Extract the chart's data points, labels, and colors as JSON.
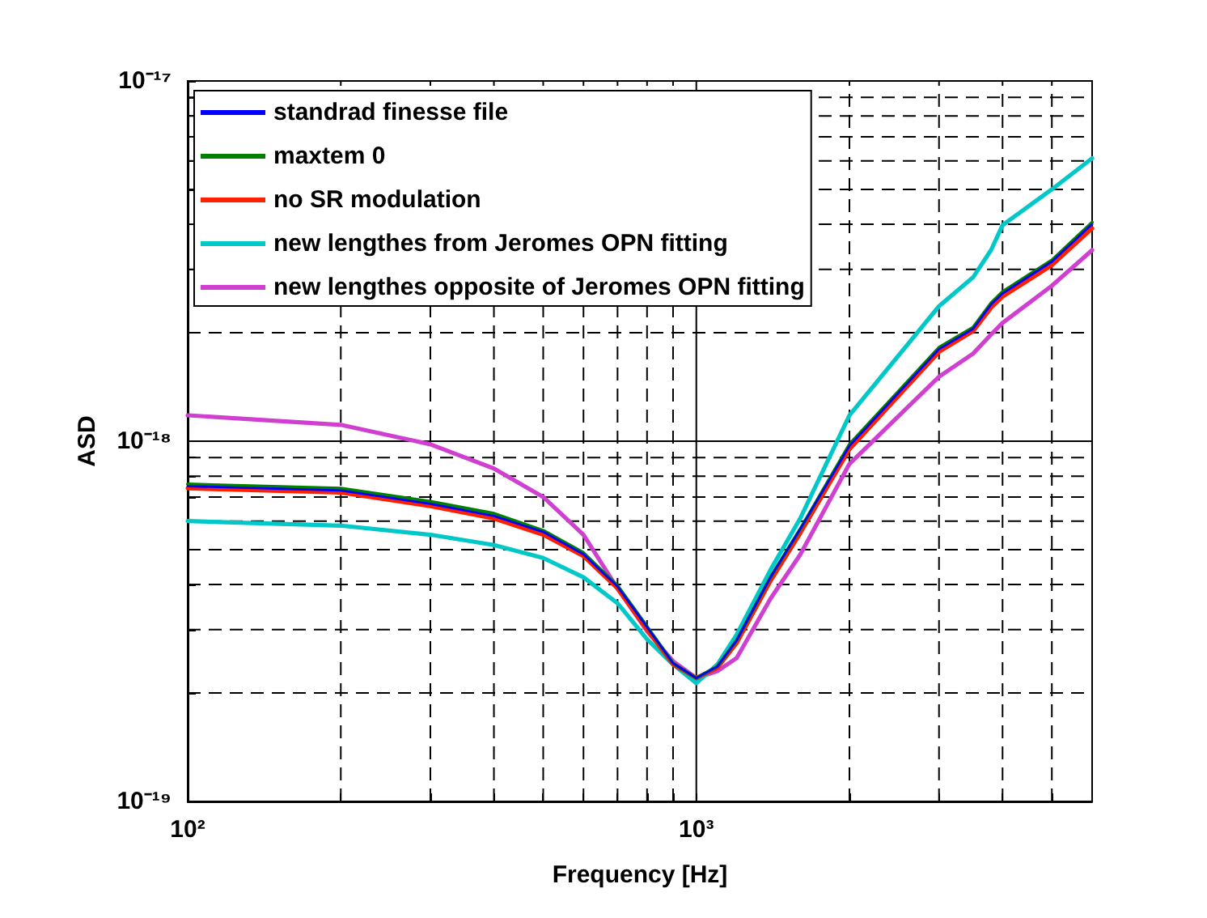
{
  "chart_data": {
    "type": "line",
    "xlabel": "Frequency [Hz]",
    "ylabel": "ASD",
    "x": [
      100,
      200,
      300,
      400,
      500,
      600,
      700,
      800,
      900,
      1000,
      1100,
      1200,
      1400,
      1600,
      2000,
      3000,
      3500,
      3800,
      4000,
      5000,
      6000
    ],
    "series": [
      {
        "name": "standrad finesse file",
        "color": "#0000ff",
        "values": [
          7.5e-19,
          7.3e-19,
          6.7e-19,
          6.2e-19,
          5.6e-19,
          4.85e-19,
          3.95e-19,
          3.05e-19,
          2.42e-19,
          2.2e-19,
          2.37e-19,
          2.8e-19,
          4.2e-19,
          5.7e-19,
          9.7e-19,
          1.8e-18,
          2.05e-18,
          2.4e-18,
          2.57e-18,
          3.15e-18,
          4e-18
        ]
      },
      {
        "name": "maxtem 0",
        "color": "#008000",
        "values": [
          7.6e-19,
          7.4e-19,
          6.8e-19,
          6.3e-19,
          5.65e-19,
          4.9e-19,
          3.97e-19,
          3.06e-19,
          2.42e-19,
          2.2e-19,
          2.37e-19,
          2.8e-19,
          4.2e-19,
          5.7e-19,
          9.8e-19,
          1.82e-18,
          2.07e-18,
          2.42e-18,
          2.6e-18,
          3.18e-18,
          4.05e-18
        ]
      },
      {
        "name": "no SR modulation",
        "color": "#ff2000",
        "values": [
          7.4e-19,
          7.2e-19,
          6.6e-19,
          6.1e-19,
          5.5e-19,
          4.8e-19,
          3.9e-19,
          3e-19,
          2.4e-19,
          2.2e-19,
          2.35e-19,
          2.75e-19,
          4.1e-19,
          5.55e-19,
          9.5e-19,
          1.77e-18,
          2.02e-18,
          2.35e-18,
          2.52e-18,
          3.08e-18,
          3.9e-18
        ]
      },
      {
        "name": "new lengthes from Jeromes OPN fitting",
        "color": "#00c8c8",
        "values": [
          6e-19,
          5.83e-19,
          5.5e-19,
          5.15e-19,
          4.74e-19,
          4.19e-19,
          3.55e-19,
          2.82e-19,
          2.4e-19,
          2.13e-19,
          2.4e-19,
          2.9e-19,
          4.4e-19,
          6.1e-19,
          1.18e-18,
          2.37e-18,
          2.85e-18,
          3.4e-18,
          3.98e-18,
          5e-18,
          6.1e-18
        ]
      },
      {
        "name": "new lengthes opposite of Jeromes OPN fitting",
        "color": "#d040d0",
        "values": [
          1.18e-18,
          1.11e-18,
          9.8e-19,
          8.4e-19,
          7e-19,
          5.5e-19,
          3.9e-19,
          2.97e-19,
          2.45e-19,
          2.2e-19,
          2.3e-19,
          2.5e-19,
          3.66e-19,
          4.84e-19,
          8.65e-19,
          1.51e-18,
          1.75e-18,
          1.98e-18,
          2.13e-18,
          2.7e-18,
          3.39e-18
        ]
      }
    ],
    "xlim": [
      100,
      6000
    ],
    "xticks": [
      {
        "value": 100,
        "label": "10²"
      },
      {
        "value": 200,
        "label": null
      },
      {
        "value": 300,
        "label": null
      },
      {
        "value": 400,
        "label": null
      },
      {
        "value": 500,
        "label": null
      },
      {
        "value": 600,
        "label": null
      },
      {
        "value": 700,
        "label": null
      },
      {
        "value": 800,
        "label": null
      },
      {
        "value": 900,
        "label": null
      },
      {
        "value": 1000,
        "label": "10³"
      },
      {
        "value": 2000,
        "label": null
      },
      {
        "value": 3000,
        "label": null
      },
      {
        "value": 4000,
        "label": null
      },
      {
        "value": 5000,
        "label": null
      }
    ],
    "ylim": [
      1e-19,
      1e-17
    ],
    "yticks": [
      {
        "value": 1e-19,
        "label": "10⁻¹⁹"
      },
      {
        "value": 2e-19,
        "label": null
      },
      {
        "value": 3e-19,
        "label": null
      },
      {
        "value": 4e-19,
        "label": null
      },
      {
        "value": 5e-19,
        "label": null
      },
      {
        "value": 6e-19,
        "label": null
      },
      {
        "value": 7e-19,
        "label": null
      },
      {
        "value": 8e-19,
        "label": null
      },
      {
        "value": 9e-19,
        "label": null
      },
      {
        "value": 1e-18,
        "label": "10⁻¹⁸"
      },
      {
        "value": 2e-18,
        "label": null
      },
      {
        "value": 3e-18,
        "label": null
      },
      {
        "value": 4e-18,
        "label": null
      },
      {
        "value": 5e-18,
        "label": null
      },
      {
        "value": 6e-18,
        "label": null
      },
      {
        "value": 7e-18,
        "label": null
      },
      {
        "value": 8e-18,
        "label": null
      },
      {
        "value": 9e-18,
        "label": null
      },
      {
        "value": 1e-17,
        "label": "10⁻¹⁷"
      }
    ],
    "log": "xy",
    "grid": true,
    "legend": "top left",
    "marker": "none"
  }
}
